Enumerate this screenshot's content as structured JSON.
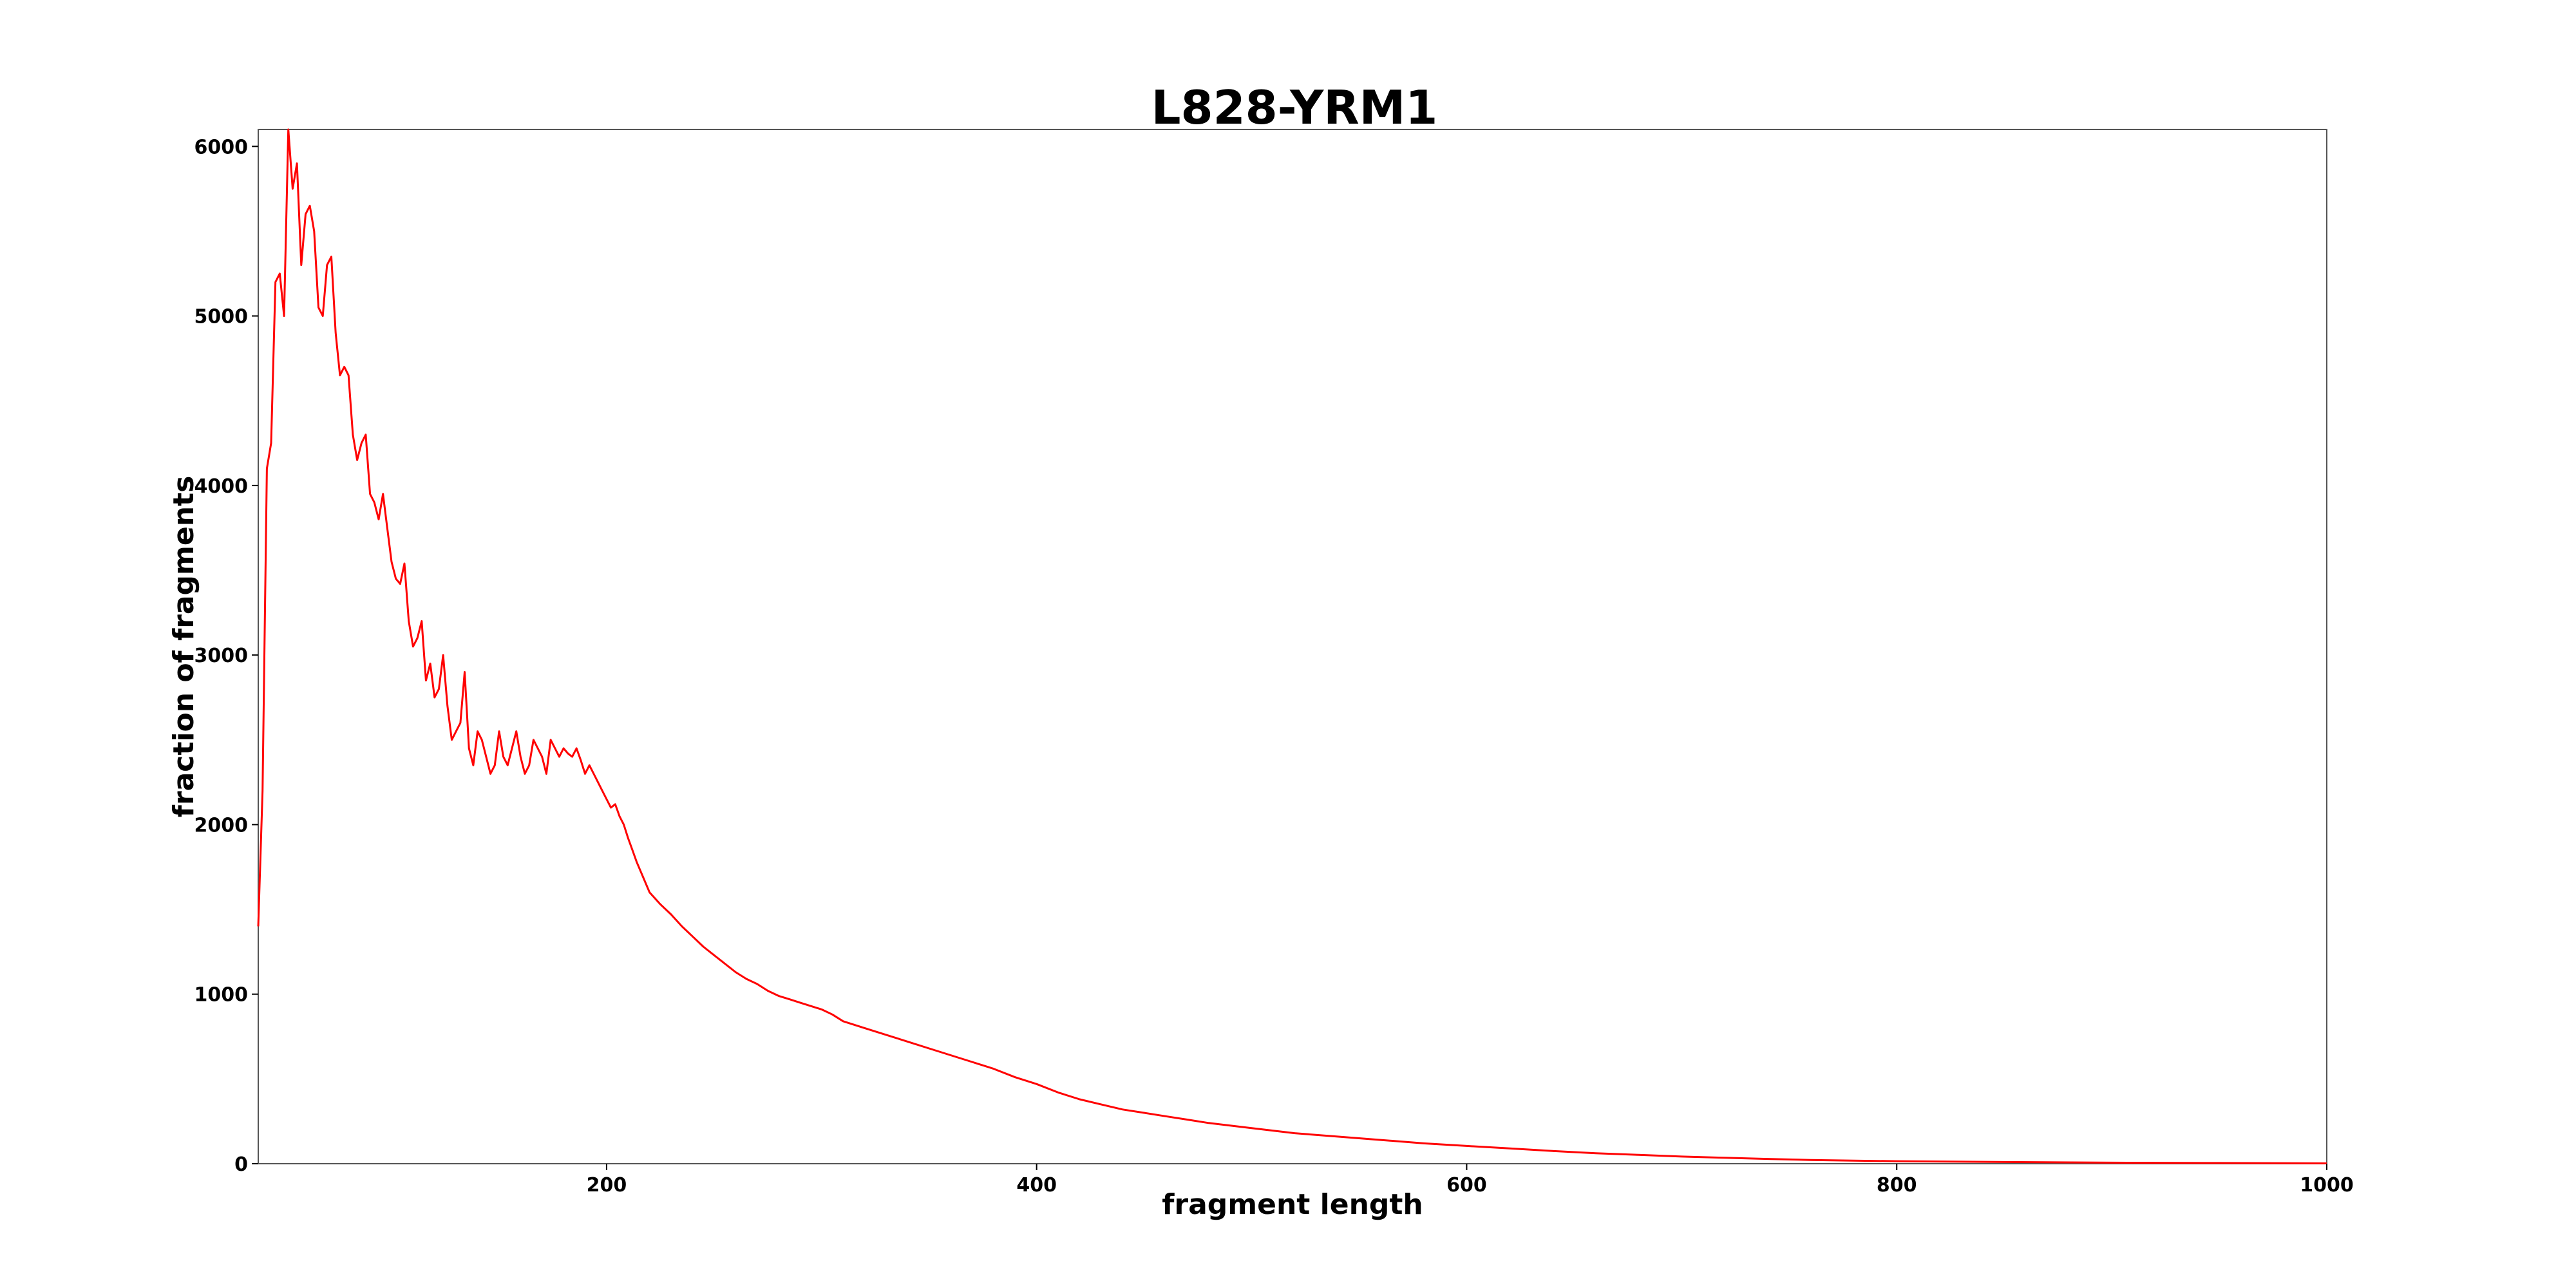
{
  "chart_data": {
    "type": "line",
    "title": "L828-YRM1",
    "xlabel": "fragment length",
    "ylabel": "fraction of fragments",
    "xlim": [
      38,
      1000
    ],
    "ylim": [
      0,
      6100
    ],
    "xticks": [
      200,
      400,
      600,
      800,
      1000
    ],
    "yticks": [
      0,
      1000,
      2000,
      3000,
      4000,
      5000,
      6000
    ],
    "grid": false,
    "series": [
      {
        "color": "#ff0000",
        "x": [
          38,
          40,
          42,
          44,
          46,
          48,
          50,
          52,
          54,
          56,
          58,
          60,
          62,
          64,
          66,
          68,
          70,
          72,
          74,
          76,
          78,
          80,
          82,
          84,
          86,
          88,
          90,
          92,
          94,
          96,
          98,
          100,
          102,
          104,
          106,
          108,
          110,
          112,
          114,
          116,
          118,
          120,
          122,
          124,
          126,
          128,
          130,
          132,
          134,
          136,
          138,
          140,
          142,
          144,
          146,
          148,
          150,
          152,
          154,
          156,
          158,
          160,
          162,
          164,
          166,
          168,
          170,
          172,
          174,
          176,
          178,
          180,
          182,
          184,
          186,
          188,
          190,
          192,
          194,
          196,
          198,
          200,
          202,
          204,
          206,
          208,
          210,
          212,
          214,
          216,
          218,
          220,
          225,
          230,
          235,
          240,
          245,
          250,
          255,
          260,
          265,
          270,
          275,
          280,
          285,
          290,
          295,
          300,
          305,
          310,
          320,
          330,
          340,
          350,
          360,
          370,
          380,
          390,
          400,
          410,
          420,
          430,
          440,
          450,
          460,
          470,
          480,
          490,
          500,
          520,
          540,
          560,
          580,
          600,
          620,
          640,
          660,
          680,
          700,
          720,
          740,
          760,
          780,
          800,
          850,
          900,
          950,
          1000
        ],
        "values": [
          1400,
          2200,
          4100,
          4250,
          5200,
          5250,
          5000,
          6100,
          5750,
          5900,
          5300,
          5600,
          5650,
          5500,
          5050,
          5000,
          5300,
          5350,
          4900,
          4650,
          4700,
          4650,
          4300,
          4150,
          4250,
          4300,
          3950,
          3900,
          3800,
          3950,
          3750,
          3550,
          3450,
          3420,
          3540,
          3200,
          3050,
          3100,
          3200,
          2850,
          2950,
          2750,
          2800,
          3000,
          2700,
          2500,
          2550,
          2600,
          2900,
          2450,
          2350,
          2550,
          2500,
          2400,
          2300,
          2350,
          2550,
          2400,
          2350,
          2450,
          2550,
          2400,
          2300,
          2350,
          2500,
          2450,
          2400,
          2300,
          2500,
          2450,
          2400,
          2450,
          2420,
          2400,
          2450,
          2380,
          2300,
          2350,
          2300,
          2250,
          2200,
          2150,
          2100,
          2120,
          2050,
          2000,
          1920,
          1850,
          1780,
          1720,
          1660,
          1600,
          1530,
          1470,
          1400,
          1340,
          1280,
          1230,
          1180,
          1130,
          1090,
          1060,
          1020,
          990,
          970,
          950,
          930,
          910,
          880,
          840,
          800,
          760,
          720,
          680,
          640,
          600,
          560,
          510,
          470,
          420,
          380,
          350,
          320,
          300,
          280,
          260,
          240,
          225,
          210,
          180,
          160,
          140,
          120,
          105,
          90,
          75,
          62,
          52,
          42,
          35,
          28,
          22,
          18,
          15,
          10,
          6,
          4,
          2
        ]
      }
    ]
  }
}
